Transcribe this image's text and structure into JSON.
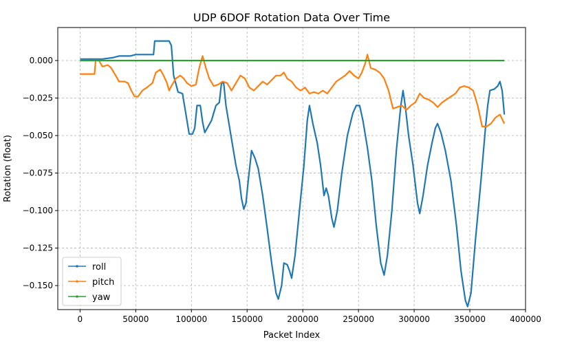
{
  "chart_data": {
    "type": "line",
    "title": "UDP 6DOF Rotation Data Over Time",
    "xlabel": "Packet Index",
    "ylabel": "Rotation (float)",
    "xlim": [
      -20000,
      400000
    ],
    "ylim": [
      -0.166,
      0.022
    ],
    "xticks": [
      0,
      50000,
      100000,
      150000,
      200000,
      250000,
      300000,
      350000,
      400000
    ],
    "yticks": [
      0.0,
      -0.025,
      -0.05,
      -0.075,
      -0.1,
      -0.125,
      -0.15
    ],
    "xtick_labels": [
      "0",
      "50000",
      "100000",
      "150000",
      "200000",
      "250000",
      "300000",
      "350000",
      "400000"
    ],
    "ytick_labels": [
      "0.000",
      "−0.025",
      "−0.050",
      "−0.075",
      "−0.100",
      "−0.125",
      "−0.150"
    ],
    "grid": true,
    "legend_position": "lower-left",
    "series": [
      {
        "name": "roll",
        "color": "#1f77b4",
        "points": [
          [
            0,
            0.001
          ],
          [
            20000,
            0.001
          ],
          [
            30000,
            0.002
          ],
          [
            35000,
            0.003
          ],
          [
            45000,
            0.003
          ],
          [
            50000,
            0.004
          ],
          [
            66000,
            0.004
          ],
          [
            67000,
            0.013
          ],
          [
            80000,
            0.013
          ],
          [
            82000,
            0.01
          ],
          [
            84000,
            -0.01
          ],
          [
            88000,
            -0.021
          ],
          [
            92000,
            -0.022
          ],
          [
            96000,
            -0.04
          ],
          [
            98000,
            -0.049
          ],
          [
            101000,
            -0.049
          ],
          [
            103000,
            -0.045
          ],
          [
            105000,
            -0.03
          ],
          [
            108000,
            -0.03
          ],
          [
            110000,
            -0.041
          ],
          [
            112000,
            -0.048
          ],
          [
            118000,
            -0.04
          ],
          [
            122000,
            -0.03
          ],
          [
            125000,
            -0.028
          ],
          [
            127000,
            -0.015
          ],
          [
            129000,
            -0.015
          ],
          [
            131000,
            -0.03
          ],
          [
            135000,
            -0.048
          ],
          [
            140000,
            -0.07
          ],
          [
            143000,
            -0.08
          ],
          [
            145000,
            -0.092
          ],
          [
            147000,
            -0.099
          ],
          [
            149000,
            -0.095
          ],
          [
            151000,
            -0.08
          ],
          [
            154000,
            -0.06
          ],
          [
            157000,
            -0.065
          ],
          [
            160000,
            -0.072
          ],
          [
            164000,
            -0.09
          ],
          [
            168000,
            -0.112
          ],
          [
            172000,
            -0.135
          ],
          [
            176000,
            -0.155
          ],
          [
            178000,
            -0.159
          ],
          [
            181000,
            -0.15
          ],
          [
            183000,
            -0.135
          ],
          [
            186000,
            -0.136
          ],
          [
            188000,
            -0.14
          ],
          [
            190000,
            -0.145
          ],
          [
            193000,
            -0.13
          ],
          [
            197000,
            -0.1
          ],
          [
            201000,
            -0.07
          ],
          [
            204000,
            -0.04
          ],
          [
            206000,
            -0.03
          ],
          [
            209000,
            -0.042
          ],
          [
            213000,
            -0.055
          ],
          [
            216000,
            -0.07
          ],
          [
            219000,
            -0.09
          ],
          [
            221000,
            -0.085
          ],
          [
            223000,
            -0.09
          ],
          [
            226000,
            -0.105
          ],
          [
            228000,
            -0.111
          ],
          [
            231000,
            -0.1
          ],
          [
            235000,
            -0.075
          ],
          [
            240000,
            -0.05
          ],
          [
            245000,
            -0.035
          ],
          [
            248000,
            -0.03
          ],
          [
            251000,
            -0.03
          ],
          [
            254000,
            -0.04
          ],
          [
            258000,
            -0.058
          ],
          [
            262000,
            -0.08
          ],
          [
            266000,
            -0.11
          ],
          [
            270000,
            -0.135
          ],
          [
            273000,
            -0.143
          ],
          [
            276000,
            -0.13
          ],
          [
            280000,
            -0.1
          ],
          [
            284000,
            -0.06
          ],
          [
            288000,
            -0.03
          ],
          [
            290000,
            -0.02
          ],
          [
            292000,
            -0.03
          ],
          [
            295000,
            -0.05
          ],
          [
            299000,
            -0.07
          ],
          [
            303000,
            -0.095
          ],
          [
            305000,
            -0.102
          ],
          [
            308000,
            -0.09
          ],
          [
            312000,
            -0.07
          ],
          [
            316000,
            -0.055
          ],
          [
            319000,
            -0.045
          ],
          [
            321000,
            -0.042
          ],
          [
            324000,
            -0.048
          ],
          [
            328000,
            -0.06
          ],
          [
            333000,
            -0.08
          ],
          [
            338000,
            -0.11
          ],
          [
            342000,
            -0.14
          ],
          [
            346000,
            -0.16
          ],
          [
            348000,
            -0.164
          ],
          [
            351000,
            -0.155
          ],
          [
            355000,
            -0.12
          ],
          [
            360000,
            -0.08
          ],
          [
            364000,
            -0.045
          ],
          [
            366000,
            -0.03
          ],
          [
            368000,
            -0.02
          ],
          [
            372000,
            -0.019
          ],
          [
            375000,
            -0.017
          ],
          [
            377000,
            -0.014
          ],
          [
            379000,
            -0.02
          ],
          [
            381000,
            -0.036
          ]
        ]
      },
      {
        "name": "pitch",
        "color": "#ff7f0e",
        "points": [
          [
            0,
            -0.009
          ],
          [
            13000,
            -0.009
          ],
          [
            14000,
            0.0
          ],
          [
            17000,
            0.0
          ],
          [
            20000,
            -0.004
          ],
          [
            25000,
            -0.003
          ],
          [
            28000,
            -0.005
          ],
          [
            32000,
            -0.01
          ],
          [
            35000,
            -0.014
          ],
          [
            40000,
            -0.014
          ],
          [
            43000,
            -0.015
          ],
          [
            46000,
            -0.02
          ],
          [
            49000,
            -0.024
          ],
          [
            52000,
            -0.024
          ],
          [
            56000,
            -0.02
          ],
          [
            60000,
            -0.018
          ],
          [
            65000,
            -0.015
          ],
          [
            68000,
            -0.008
          ],
          [
            72000,
            -0.006
          ],
          [
            75000,
            -0.01
          ],
          [
            78000,
            -0.015
          ],
          [
            80000,
            -0.02
          ],
          [
            82000,
            -0.017
          ],
          [
            86000,
            -0.012
          ],
          [
            90000,
            -0.01
          ],
          [
            93000,
            -0.012
          ],
          [
            96000,
            -0.015
          ],
          [
            100000,
            -0.017
          ],
          [
            104000,
            -0.016
          ],
          [
            107000,
            -0.005
          ],
          [
            110000,
            0.003
          ],
          [
            113000,
            -0.005
          ],
          [
            116000,
            -0.012
          ],
          [
            120000,
            -0.017
          ],
          [
            124000,
            -0.016
          ],
          [
            128000,
            -0.014
          ],
          [
            132000,
            -0.015
          ],
          [
            136000,
            -0.02
          ],
          [
            140000,
            -0.015
          ],
          [
            144000,
            -0.01
          ],
          [
            148000,
            -0.012
          ],
          [
            152000,
            -0.018
          ],
          [
            156000,
            -0.02
          ],
          [
            160000,
            -0.017
          ],
          [
            164000,
            -0.014
          ],
          [
            168000,
            -0.016
          ],
          [
            172000,
            -0.013
          ],
          [
            176000,
            -0.01
          ],
          [
            180000,
            -0.01
          ],
          [
            183000,
            -0.008
          ],
          [
            186000,
            -0.012
          ],
          [
            190000,
            -0.014
          ],
          [
            194000,
            -0.018
          ],
          [
            198000,
            -0.02
          ],
          [
            202000,
            -0.018
          ],
          [
            206000,
            -0.022
          ],
          [
            210000,
            -0.021
          ],
          [
            214000,
            -0.022
          ],
          [
            218000,
            -0.02
          ],
          [
            222000,
            -0.022
          ],
          [
            226000,
            -0.018
          ],
          [
            230000,
            -0.014
          ],
          [
            234000,
            -0.012
          ],
          [
            238000,
            -0.01
          ],
          [
            242000,
            -0.007
          ],
          [
            246000,
            -0.01
          ],
          [
            250000,
            -0.012
          ],
          [
            253000,
            -0.008
          ],
          [
            256000,
            -0.002
          ],
          [
            258000,
            0.004
          ],
          [
            261000,
            -0.005
          ],
          [
            265000,
            -0.006
          ],
          [
            269000,
            -0.008
          ],
          [
            273000,
            -0.012
          ],
          [
            277000,
            -0.02
          ],
          [
            281000,
            -0.032
          ],
          [
            285000,
            -0.031
          ],
          [
            289000,
            -0.03
          ],
          [
            293000,
            -0.033
          ],
          [
            297000,
            -0.03
          ],
          [
            301000,
            -0.028
          ],
          [
            305000,
            -0.022
          ],
          [
            309000,
            -0.025
          ],
          [
            313000,
            -0.026
          ],
          [
            317000,
            -0.028
          ],
          [
            321000,
            -0.031
          ],
          [
            325000,
            -0.028
          ],
          [
            329000,
            -0.026
          ],
          [
            333000,
            -0.024
          ],
          [
            337000,
            -0.022
          ],
          [
            341000,
            -0.018
          ],
          [
            345000,
            -0.017
          ],
          [
            349000,
            -0.018
          ],
          [
            353000,
            -0.02
          ],
          [
            357000,
            -0.03
          ],
          [
            361000,
            -0.044
          ],
          [
            365000,
            -0.044
          ],
          [
            369000,
            -0.042
          ],
          [
            373000,
            -0.038
          ],
          [
            377000,
            -0.036
          ],
          [
            381000,
            -0.042
          ]
        ]
      },
      {
        "name": "yaw",
        "color": "#2ca02c",
        "points": [
          [
            0,
            0.0
          ],
          [
            381000,
            0.0
          ]
        ]
      }
    ]
  }
}
